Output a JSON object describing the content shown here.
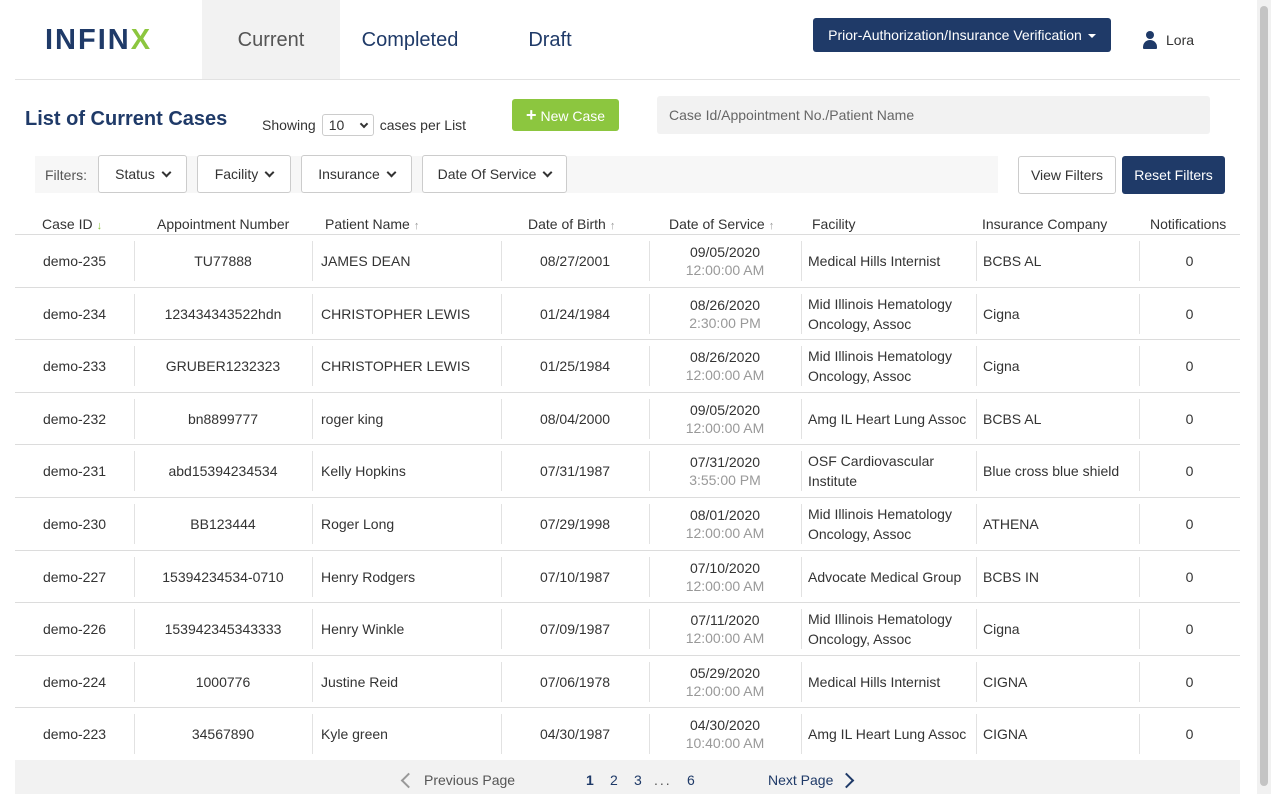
{
  "header": {
    "logo_main": "INFIN",
    "logo_x": "X",
    "tabs": [
      {
        "label": "Current"
      },
      {
        "label": "Completed"
      },
      {
        "label": "Draft"
      }
    ],
    "mode_label": "Prior-Authorization/Insurance Verification",
    "user_name": "Lora"
  },
  "toolbar": {
    "title": "List of Current Cases",
    "showing_label": "Showing",
    "per_page_value": "10",
    "per_page_suffix": "cases per List",
    "new_case_label": "New Case",
    "search_placeholder": "Case Id/Appointment No./Patient Name"
  },
  "filters": {
    "label": "Filters:",
    "buttons": [
      "Status",
      "Facility",
      "Insurance",
      "Date Of Service"
    ],
    "view_label": "View Filters",
    "reset_label": "Reset Filters"
  },
  "table": {
    "columns": [
      "Case ID",
      "Appointment Number",
      "Patient Name",
      "Date of Birth",
      "Date of Service",
      "Facility",
      "Insurance Company",
      "Notifications"
    ],
    "rows": [
      {
        "id": "demo-235",
        "appt": "TU77888",
        "patient": "JAMES DEAN",
        "dob": "08/27/2001",
        "dos_date": "09/05/2020",
        "dos_time": "12:00:00 AM",
        "facility": "Medical Hills Internist",
        "insurance": "BCBS AL",
        "notif": "0"
      },
      {
        "id": "demo-234",
        "appt": "123434343522hdn",
        "patient": "CHRISTOPHER LEWIS",
        "dob": "01/24/1984",
        "dos_date": "08/26/2020",
        "dos_time": "2:30:00 PM",
        "facility": "Mid Illinois Hematology Oncology, Assoc",
        "insurance": "Cigna",
        "notif": "0"
      },
      {
        "id": "demo-233",
        "appt": "GRUBER1232323",
        "patient": "CHRISTOPHER LEWIS",
        "dob": "01/25/1984",
        "dos_date": "08/26/2020",
        "dos_time": "12:00:00 AM",
        "facility": "Mid Illinois Hematology Oncology, Assoc",
        "insurance": "Cigna",
        "notif": "0"
      },
      {
        "id": "demo-232",
        "appt": "bn8899777",
        "patient": "roger king",
        "dob": "08/04/2000",
        "dos_date": "09/05/2020",
        "dos_time": "12:00:00 AM",
        "facility": "Amg IL Heart Lung Assoc",
        "insurance": "BCBS AL",
        "notif": "0"
      },
      {
        "id": "demo-231",
        "appt": "abd15394234534",
        "patient": "Kelly Hopkins",
        "dob": "07/31/1987",
        "dos_date": "07/31/2020",
        "dos_time": "3:55:00 PM",
        "facility": "OSF Cardiovascular Institute",
        "insurance": "Blue cross blue shield",
        "notif": "0"
      },
      {
        "id": "demo-230",
        "appt": "BB123444",
        "patient": "Roger Long",
        "dob": "07/29/1998",
        "dos_date": "08/01/2020",
        "dos_time": "12:00:00 AM",
        "facility": "Mid Illinois Hematology Oncology, Assoc",
        "insurance": "ATHENA",
        "notif": "0"
      },
      {
        "id": "demo-227",
        "appt": "15394234534-0710",
        "patient": "Henry Rodgers",
        "dob": "07/10/1987",
        "dos_date": "07/10/2020",
        "dos_time": "12:00:00 AM",
        "facility": "Advocate Medical Group",
        "insurance": "BCBS IN",
        "notif": "0"
      },
      {
        "id": "demo-226",
        "appt": "153942345343333",
        "patient": "Henry Winkle",
        "dob": "07/09/1987",
        "dos_date": "07/11/2020",
        "dos_time": "12:00:00 AM",
        "facility": "Mid Illinois Hematology Oncology, Assoc",
        "insurance": "Cigna",
        "notif": "0"
      },
      {
        "id": "demo-224",
        "appt": "1000776",
        "patient": "Justine Reid",
        "dob": "07/06/1978",
        "dos_date": "05/29/2020",
        "dos_time": "12:00:00 AM",
        "facility": "Medical Hills Internist",
        "insurance": "CIGNA",
        "notif": "0"
      },
      {
        "id": "demo-223",
        "appt": "34567890",
        "patient": "Kyle green",
        "dob": "04/30/1987",
        "dos_date": "04/30/2020",
        "dos_time": "10:40:00 AM",
        "facility": "Amg IL Heart Lung Assoc",
        "insurance": "CIGNA",
        "notif": "0"
      }
    ]
  },
  "pagination": {
    "prev_label": "Previous Page",
    "pages": [
      "1",
      "2",
      "3"
    ],
    "dots": "...",
    "last_page": "6",
    "next_label": "Next Page"
  },
  "colors": {
    "brand_navy": "#1f3a68",
    "brand_green": "#8cc63f"
  }
}
